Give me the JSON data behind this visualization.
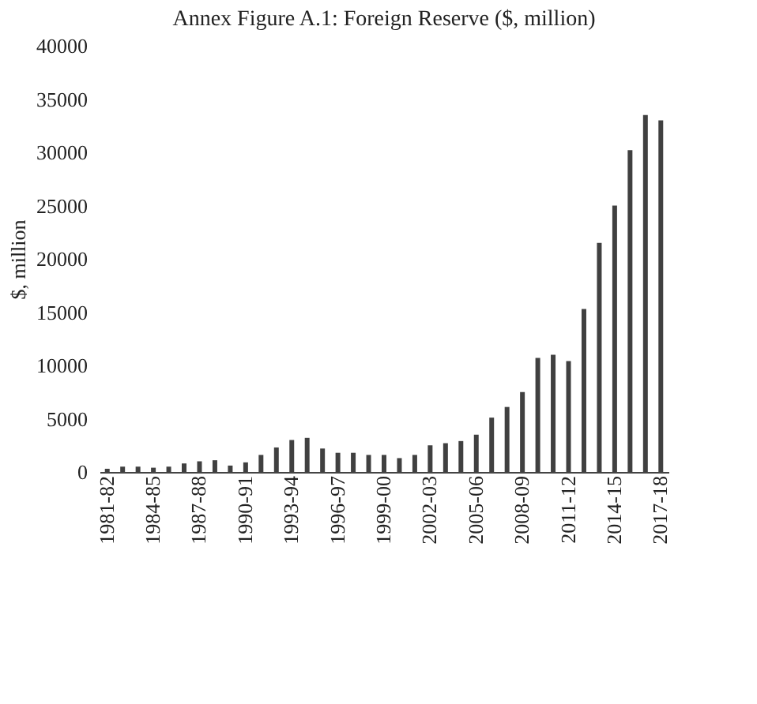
{
  "chart_data": {
    "type": "bar",
    "title": "Annex Figure A.1: Foreign Reserve ($, million)",
    "ylabel": "$, million",
    "categories": [
      "1981-82",
      null,
      null,
      "1984-85",
      null,
      null,
      "1987-88",
      null,
      null,
      "1990-91",
      null,
      null,
      "1993-94",
      null,
      null,
      "1996-97",
      null,
      null,
      "1999-00",
      null,
      null,
      "2002-03",
      null,
      null,
      "2005-06",
      null,
      null,
      "2008-09",
      null,
      null,
      "2011-12",
      null,
      null,
      "2014-15",
      null,
      null,
      "2017-18"
    ],
    "values": [
      300,
      500,
      500,
      400,
      500,
      800,
      1000,
      1100,
      600,
      900,
      1600,
      2300,
      3000,
      3200,
      2200,
      1800,
      1800,
      1600,
      1600,
      1300,
      1600,
      2500,
      2700,
      2900,
      3500,
      5100,
      6100,
      7500,
      10700,
      11000,
      10400,
      15300,
      21500,
      25000,
      30200,
      33500,
      33000
    ],
    "color": "#404040",
    "ylim": [
      0,
      40000
    ],
    "yticks": [
      0,
      5000,
      10000,
      15000,
      20000,
      25000,
      30000,
      35000,
      40000
    ],
    "grid": false
  }
}
